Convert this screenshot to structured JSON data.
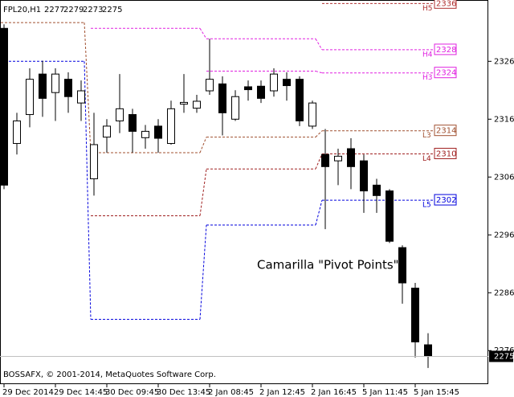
{
  "chart_data": {
    "type": "candlestick",
    "title": "FPL20,H1",
    "ohlc_header": [
      2277,
      2279,
      2273,
      2275
    ],
    "annotation": "Camarilla \"Pivot Points\"",
    "copyright": "BOSSAFX, © 2001-2014, MetaQuotes Software Corp.",
    "categories": [
      "29 Dec 2014",
      null,
      null,
      null,
      "29 Dec 14:45",
      null,
      null,
      null,
      "30 Dec 09:45",
      null,
      null,
      null,
      "30 Dec 13:45",
      null,
      null,
      null,
      "2 Jan 08:45",
      null,
      null,
      null,
      "2 Jan 12:45",
      null,
      null,
      null,
      "2 Jan 16:45",
      null,
      null,
      null,
      "5 Jan 11:45",
      null,
      null,
      null,
      "5 Jan 15:45",
      null
    ],
    "open": [
      2331.7,
      2311.8,
      2316.8,
      2323.8,
      2320.6,
      2322.9,
      2318.8,
      2305.7,
      2312.9,
      2315.7,
      2316.8,
      2312.8,
      2314.8,
      2311.8,
      2318.6,
      2317.9,
      2320.9,
      2322.1,
      2316.0,
      2321.6,
      2321.7,
      2320.9,
      2322.9,
      2322.9,
      2314.8,
      2309.9,
      2308.8,
      2310.9,
      2308.8,
      2304.6,
      2303.6,
      2293.8,
      2286.8,
      2277
    ],
    "high": [
      2332.4,
      2317.1,
      2324.8,
      2326.1,
      2324.8,
      2324.1,
      2322.7,
      2317.1,
      2316.0,
      2323.8,
      2317.8,
      2315.0,
      2316.0,
      2319.2,
      2323.8,
      2320.2,
      2329.9,
      2323.4,
      2321.0,
      2322.7,
      2322.7,
      2324.8,
      2324.1,
      2323.4,
      2319.2,
      2314.3,
      2310.9,
      2312.7,
      2309.9,
      2305.7,
      2303.9,
      2294.2,
      2287.7,
      2279
    ],
    "low": [
      2303.9,
      2309.9,
      2314.6,
      2316.4,
      2315.7,
      2317.1,
      2315.7,
      2302.8,
      2310.2,
      2313.6,
      2310.2,
      2310.9,
      2310.2,
      2311.6,
      2317.1,
      2317.1,
      2320.2,
      2313.2,
      2315.7,
      2319.2,
      2318.8,
      2319.9,
      2319.2,
      2314.8,
      2314.3,
      2297.0,
      2304.6,
      2303.9,
      2299.8,
      2299.8,
      2294.6,
      2284.1,
      2274.8,
      2273
    ],
    "close": [
      2304.6,
      2315.7,
      2322.9,
      2319.6,
      2323.8,
      2319.9,
      2320.9,
      2311.6,
      2314.8,
      2317.8,
      2313.9,
      2313.9,
      2312.7,
      2317.8,
      2318.9,
      2319.1,
      2322.9,
      2317.1,
      2319.9,
      2321.1,
      2319.6,
      2323.8,
      2321.8,
      2315.7,
      2318.8,
      2307.8,
      2309.6,
      2307.8,
      2303.6,
      2302.8,
      2294.9,
      2287.7,
      2277.5,
      2275
    ],
    "up_color": "#ffffff",
    "down_color": "#000000",
    "pivot_lines": [
      {
        "name": "H5",
        "color": "#b03030",
        "values": [
          null,
          null,
          null,
          2336
        ]
      },
      {
        "name": "H4",
        "color": "#e020e0",
        "values": [
          null,
          2331.7,
          2329.9,
          2328
        ]
      },
      {
        "name": "H3",
        "color": "#e020e0",
        "values": [
          null,
          null,
          2324.3,
          2324
        ]
      },
      {
        "name": "L3",
        "color": "#a05030",
        "values": [
          2332.7,
          2310.2,
          2312.9,
          2314
        ]
      },
      {
        "name": "L4",
        "color": "#a02020",
        "values": [
          null,
          2299.3,
          2307.4,
          2310
        ]
      },
      {
        "name": "L5",
        "color": "#0000dd",
        "values": [
          2326,
          2281.4,
          2297.7,
          2302
        ]
      }
    ],
    "ylim": [
      2270.2,
      2336.6
    ],
    "yticks": [
      2276,
      2286,
      2296,
      2306,
      2316,
      2326
    ]
  }
}
